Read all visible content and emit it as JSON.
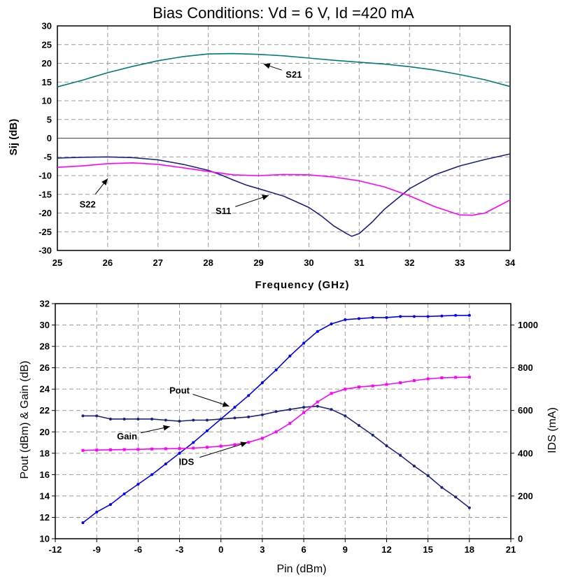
{
  "chart_data": [
    {
      "type": "line",
      "title": "Bias Conditions:  Vd = 6 V, Id =420 mA",
      "xlabel": "Frequency (GHz)",
      "ylabel": "Sij (dB)",
      "xlim": [
        25,
        34
      ],
      "ylim": [
        -30,
        30
      ],
      "xticks": [
        "25",
        "26",
        "27",
        "28",
        "29",
        "30",
        "31",
        "32",
        "33",
        "34"
      ],
      "yticks": [
        "30",
        "25",
        "20",
        "15",
        "10",
        "5",
        "0",
        "-5",
        "-10",
        "-15",
        "-20",
        "-25",
        "-30"
      ],
      "grid": true,
      "zero_line": true,
      "series": [
        {
          "name": "S21",
          "color": "#007b7b",
          "x": [
            25,
            25.5,
            26,
            26.5,
            27,
            27.5,
            28,
            28.5,
            29,
            29.5,
            30,
            30.5,
            31,
            31.5,
            32,
            32.5,
            33,
            33.5,
            34
          ],
          "y": [
            13.7,
            15.5,
            17.5,
            19.2,
            20.7,
            21.8,
            22.5,
            22.6,
            22.4,
            22.0,
            21.4,
            20.8,
            20.3,
            19.8,
            19.1,
            18.2,
            17.0,
            15.6,
            13.8
          ]
        },
        {
          "name": "S11",
          "color": "#1a237e",
          "x": [
            25,
            25.5,
            26,
            26.5,
            27,
            27.5,
            28,
            28.25,
            28.5,
            28.75,
            29,
            29.5,
            30,
            30.25,
            30.5,
            30.75,
            30.85,
            31,
            31.25,
            31.5,
            32,
            32.5,
            33,
            33.5,
            34
          ],
          "y": [
            -5.3,
            -5.1,
            -5.0,
            -5.2,
            -5.8,
            -7.0,
            -8.6,
            -9.8,
            -11.2,
            -12.5,
            -13.5,
            -15.5,
            -18.5,
            -20.8,
            -23.5,
            -25.5,
            -26.2,
            -25.5,
            -22.5,
            -19.0,
            -13.5,
            -9.8,
            -7.4,
            -5.7,
            -4.2
          ]
        },
        {
          "name": "S22",
          "color": "#ff00ff",
          "x": [
            25,
            25.5,
            26,
            26.5,
            27,
            27.5,
            28,
            28.5,
            29,
            29.5,
            30,
            30.5,
            31,
            31.5,
            32,
            32.5,
            33,
            33.25,
            33.5,
            34
          ],
          "y": [
            -7.8,
            -7.4,
            -6.8,
            -6.6,
            -7.0,
            -7.9,
            -8.9,
            -9.8,
            -10.0,
            -9.7,
            -9.8,
            -10.4,
            -11.4,
            -13.0,
            -15.4,
            -18.3,
            -20.5,
            -20.6,
            -20.0,
            -16.5
          ]
        }
      ],
      "annotations": [
        {
          "text": "S21",
          "at": [
            29.7,
            16.2
          ],
          "arrow_to": [
            29.1,
            19.8
          ]
        },
        {
          "text": "S11",
          "at": [
            28.3,
            -20.3
          ],
          "arrow_to": [
            29.2,
            -15.3
          ]
        },
        {
          "text": "S22",
          "at": [
            25.6,
            -18.5
          ],
          "arrow_to": [
            26.0,
            -10.8
          ]
        }
      ]
    },
    {
      "type": "line",
      "xlabel": "Pin (dBm)",
      "ylabel": "Pout (dBm) & Gain (dB)",
      "y2label": "IDS (mA)",
      "xlim": [
        -12,
        21
      ],
      "ylim": [
        10,
        32
      ],
      "y2lim": [
        0,
        1100
      ],
      "xticks": [
        "-12",
        "-9",
        "-6",
        "-3",
        "0",
        "3",
        "6",
        "9",
        "12",
        "15",
        "18",
        "21"
      ],
      "yticks": [
        "32",
        "30",
        "28",
        "26",
        "24",
        "22",
        "20",
        "18",
        "16",
        "14",
        "12",
        "10"
      ],
      "y2ticks": [
        "1000",
        "800",
        "600",
        "400",
        "200",
        "0"
      ],
      "grid": true,
      "series": [
        {
          "name": "Pout",
          "color": "#0000ff",
          "axis": "left",
          "x": [
            -10,
            -9,
            -8,
            -7,
            -6,
            -5,
            -4,
            -3,
            -2,
            -1,
            0,
            1,
            2,
            3,
            4,
            5,
            6,
            7,
            8,
            9,
            10,
            11,
            12,
            13,
            14,
            15,
            16,
            17,
            18
          ],
          "y": [
            11.5,
            12.5,
            13.2,
            14.2,
            15.1,
            16.0,
            17.0,
            18.0,
            19.0,
            20.1,
            21.2,
            22.3,
            23.4,
            24.6,
            25.8,
            27.1,
            28.3,
            29.4,
            30.1,
            30.5,
            30.6,
            30.7,
            30.7,
            30.8,
            30.8,
            30.8,
            30.85,
            30.9,
            30.9
          ]
        },
        {
          "name": "Gain",
          "color": "#1a237e",
          "axis": "left",
          "x": [
            -10,
            -9,
            -8,
            -7,
            -6,
            -5,
            -4,
            -3,
            -2,
            -1,
            0,
            1,
            2,
            3,
            4,
            5,
            6,
            7,
            8,
            9,
            10,
            11,
            12,
            13,
            14,
            15,
            16,
            17,
            18
          ],
          "y": [
            21.5,
            21.5,
            21.2,
            21.2,
            21.2,
            21.2,
            21.1,
            21.0,
            21.1,
            21.1,
            21.2,
            21.3,
            21.4,
            21.6,
            21.9,
            22.1,
            22.3,
            22.4,
            22.1,
            21.5,
            20.6,
            19.7,
            18.7,
            17.8,
            16.8,
            15.9,
            14.8,
            13.9,
            12.9
          ]
        },
        {
          "name": "IDS",
          "color": "#ff00ff",
          "axis": "right",
          "x": [
            -10,
            -9,
            -8,
            -7,
            -6,
            -5,
            -4,
            -3,
            -2,
            -1,
            0,
            1,
            2,
            3,
            4,
            5,
            6,
            7,
            8,
            9,
            10,
            11,
            12,
            13,
            14,
            15,
            16,
            17,
            18
          ],
          "y": [
            413,
            415,
            416,
            417,
            418,
            420,
            421,
            422,
            424,
            428,
            433,
            440,
            451,
            470,
            500,
            540,
            590,
            640,
            680,
            700,
            710,
            715,
            722,
            730,
            740,
            748,
            753,
            755,
            756
          ]
        }
      ],
      "annotations": [
        {
          "text": "Pout",
          "at": [
            -3.0,
            23.6
          ],
          "arrow_to": [
            0.6,
            22.4
          ]
        },
        {
          "text": "Gain",
          "at": [
            -6.8,
            19.3
          ],
          "arrow_to": [
            -3.7,
            20.5
          ]
        },
        {
          "text": "IDS",
          "at": [
            -2.5,
            16.9
          ],
          "arrow_to": [
            1.9,
            19.0
          ]
        }
      ]
    }
  ]
}
